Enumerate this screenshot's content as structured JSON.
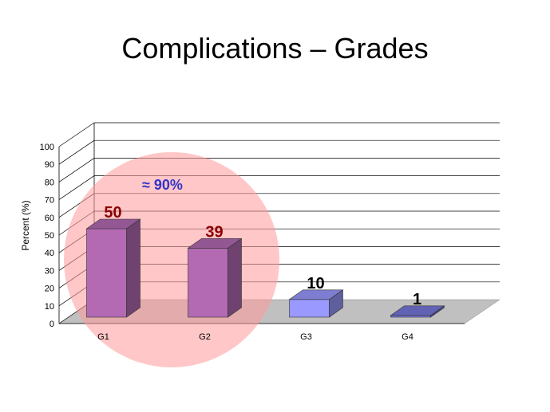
{
  "chart_data": {
    "type": "bar",
    "title": "Complications – Grades",
    "ylabel": "Percent (%)",
    "xlabel": "",
    "categories": [
      "G1",
      "G2",
      "G3",
      "G4"
    ],
    "values": [
      50,
      39,
      10,
      1
    ],
    "value_labels": [
      "50",
      "39",
      "10",
      "1"
    ],
    "ylim": [
      0,
      100
    ],
    "yticks": [
      "0",
      "10",
      "20",
      "30",
      "40",
      "50",
      "60",
      "70",
      "80",
      "90",
      "100"
    ],
    "grid": true,
    "bar_colors": [
      "#b36ab3",
      "#b36ab3",
      "#9999ff",
      "#7777dd"
    ],
    "annotation": "≈ 90%",
    "annotation_color": "#3333cc",
    "highlight_color": "#ff9999",
    "floor_color": "#c0c0c0"
  }
}
